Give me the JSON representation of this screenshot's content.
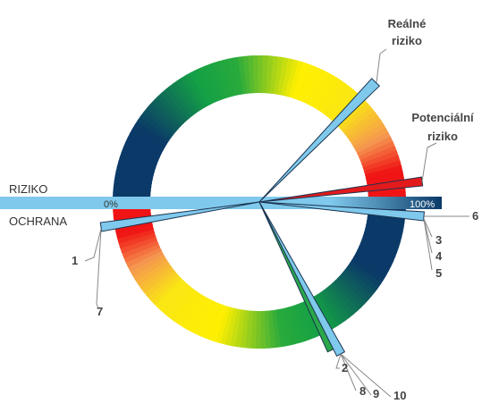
{
  "axis": {
    "left": "RIZIKO",
    "below": "OCHRANA",
    "start": "0%",
    "end": "100%"
  },
  "real_risk": [
    "Reálné",
    "riziko"
  ],
  "potential_risk": [
    "Potenciální",
    "riziko"
  ],
  "markers": [
    "1",
    "2",
    "3",
    "4",
    "5",
    "6",
    "7",
    "8",
    "9",
    "10"
  ]
}
